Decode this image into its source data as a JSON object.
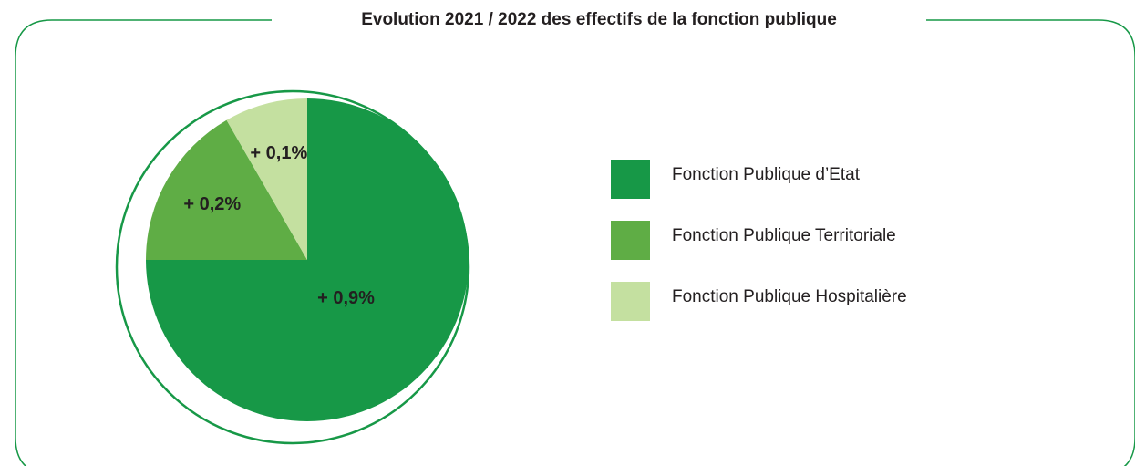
{
  "chart_data": {
    "type": "pie",
    "title": "Evolution 2021 / 2022 des effectifs de la fonction publique",
    "categories": [
      "Fonction Publique d’Etat",
      "Fonction Publique Territoriale",
      "Fonction Publique Hospitalière"
    ],
    "values": [
      0.9,
      0.2,
      0.1
    ],
    "value_labels": [
      "+ 0,9%",
      "+ 0,2%",
      "+ 0,1%"
    ],
    "colors": [
      "#179847",
      "#5fad45",
      "#c4e0a0"
    ]
  }
}
